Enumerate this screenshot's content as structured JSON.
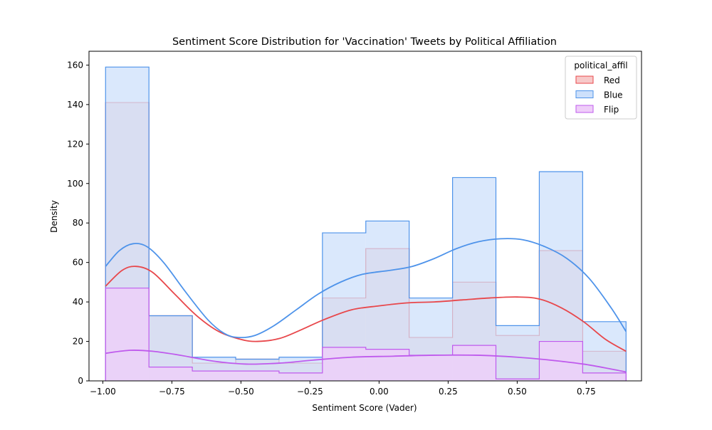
{
  "chart_data": {
    "type": "histogram",
    "title": "Sentiment Score Distribution for 'Vaccination' Tweets by Political Affiliation",
    "xlabel": "Sentiment Score (Vader)",
    "ylabel": "Density",
    "xlim": [
      -1.05,
      0.95
    ],
    "ylim": [
      0,
      167
    ],
    "xticks": [
      -1.0,
      -0.75,
      -0.5,
      -0.25,
      0.0,
      0.25,
      0.5,
      0.75
    ],
    "xtick_labels": [
      "−1.00",
      "−0.75",
      "−0.50",
      "−0.25",
      "0.00",
      "0.25",
      "0.50",
      "0.75"
    ],
    "yticks": [
      0,
      20,
      40,
      60,
      80,
      100,
      120,
      140,
      160
    ],
    "ytick_labels": [
      "0",
      "20",
      "40",
      "60",
      "80",
      "100",
      "120",
      "140",
      "160"
    ],
    "grid": false,
    "legend": {
      "title": "political_affil",
      "placement": "top-right"
    },
    "bin_edges": [
      -0.99,
      -0.833,
      -0.676,
      -0.519,
      -0.362,
      -0.205,
      -0.048,
      0.109,
      0.266,
      0.423,
      0.58,
      0.737,
      0.894
    ],
    "series": [
      {
        "name": "Red",
        "color": "#e8474b",
        "fill": "#f7c9c9",
        "counts": [
          141,
          33,
          9,
          11,
          9,
          42,
          67,
          22,
          50,
          23,
          66,
          15
        ],
        "kde": [
          [
            -0.99,
            48
          ],
          [
            -0.93,
            56
          ],
          [
            -0.88,
            58
          ],
          [
            -0.82,
            55
          ],
          [
            -0.74,
            44
          ],
          [
            -0.66,
            33
          ],
          [
            -0.58,
            25
          ],
          [
            -0.5,
            21
          ],
          [
            -0.44,
            20
          ],
          [
            -0.36,
            21.5
          ],
          [
            -0.28,
            26
          ],
          [
            -0.2,
            31
          ],
          [
            -0.1,
            36
          ],
          [
            0.0,
            38
          ],
          [
            0.1,
            39.5
          ],
          [
            0.2,
            40
          ],
          [
            0.3,
            41
          ],
          [
            0.4,
            42
          ],
          [
            0.5,
            42.5
          ],
          [
            0.58,
            41.5
          ],
          [
            0.66,
            37
          ],
          [
            0.74,
            30
          ],
          [
            0.82,
            21
          ],
          [
            0.894,
            15
          ]
        ]
      },
      {
        "name": "Blue",
        "color": "#4e93ea",
        "fill": "#cde0fb",
        "counts": [
          159,
          33,
          12,
          11,
          12,
          75,
          81,
          42,
          103,
          28,
          106,
          30
        ],
        "kde": [
          [
            -0.99,
            58
          ],
          [
            -0.94,
            66
          ],
          [
            -0.89,
            69.5
          ],
          [
            -0.84,
            68
          ],
          [
            -0.78,
            60
          ],
          [
            -0.7,
            45
          ],
          [
            -0.62,
            31
          ],
          [
            -0.56,
            24
          ],
          [
            -0.51,
            22
          ],
          [
            -0.45,
            23
          ],
          [
            -0.38,
            28
          ],
          [
            -0.3,
            36
          ],
          [
            -0.22,
            44
          ],
          [
            -0.14,
            50
          ],
          [
            -0.06,
            54
          ],
          [
            0.04,
            56
          ],
          [
            0.12,
            58
          ],
          [
            0.2,
            62
          ],
          [
            0.28,
            67
          ],
          [
            0.36,
            70.5
          ],
          [
            0.44,
            72
          ],
          [
            0.52,
            71.5
          ],
          [
            0.6,
            68
          ],
          [
            0.68,
            62
          ],
          [
            0.76,
            52
          ],
          [
            0.84,
            37
          ],
          [
            0.894,
            25
          ]
        ]
      },
      {
        "name": "Flip",
        "color": "#bf5aed",
        "fill": "#efcdf9",
        "counts": [
          47,
          7,
          5,
          5,
          4,
          17,
          16,
          13,
          18,
          1,
          20,
          4
        ],
        "kde": [
          [
            -0.99,
            14
          ],
          [
            -0.9,
            15.5
          ],
          [
            -0.82,
            15
          ],
          [
            -0.72,
            13
          ],
          [
            -0.6,
            10
          ],
          [
            -0.48,
            8.5
          ],
          [
            -0.36,
            9
          ],
          [
            -0.24,
            10.5
          ],
          [
            -0.1,
            12
          ],
          [
            0.05,
            12.5
          ],
          [
            0.2,
            13
          ],
          [
            0.35,
            13
          ],
          [
            0.5,
            12
          ],
          [
            0.62,
            10.5
          ],
          [
            0.74,
            8.5
          ],
          [
            0.84,
            6
          ],
          [
            0.894,
            4.5
          ]
        ]
      }
    ]
  }
}
